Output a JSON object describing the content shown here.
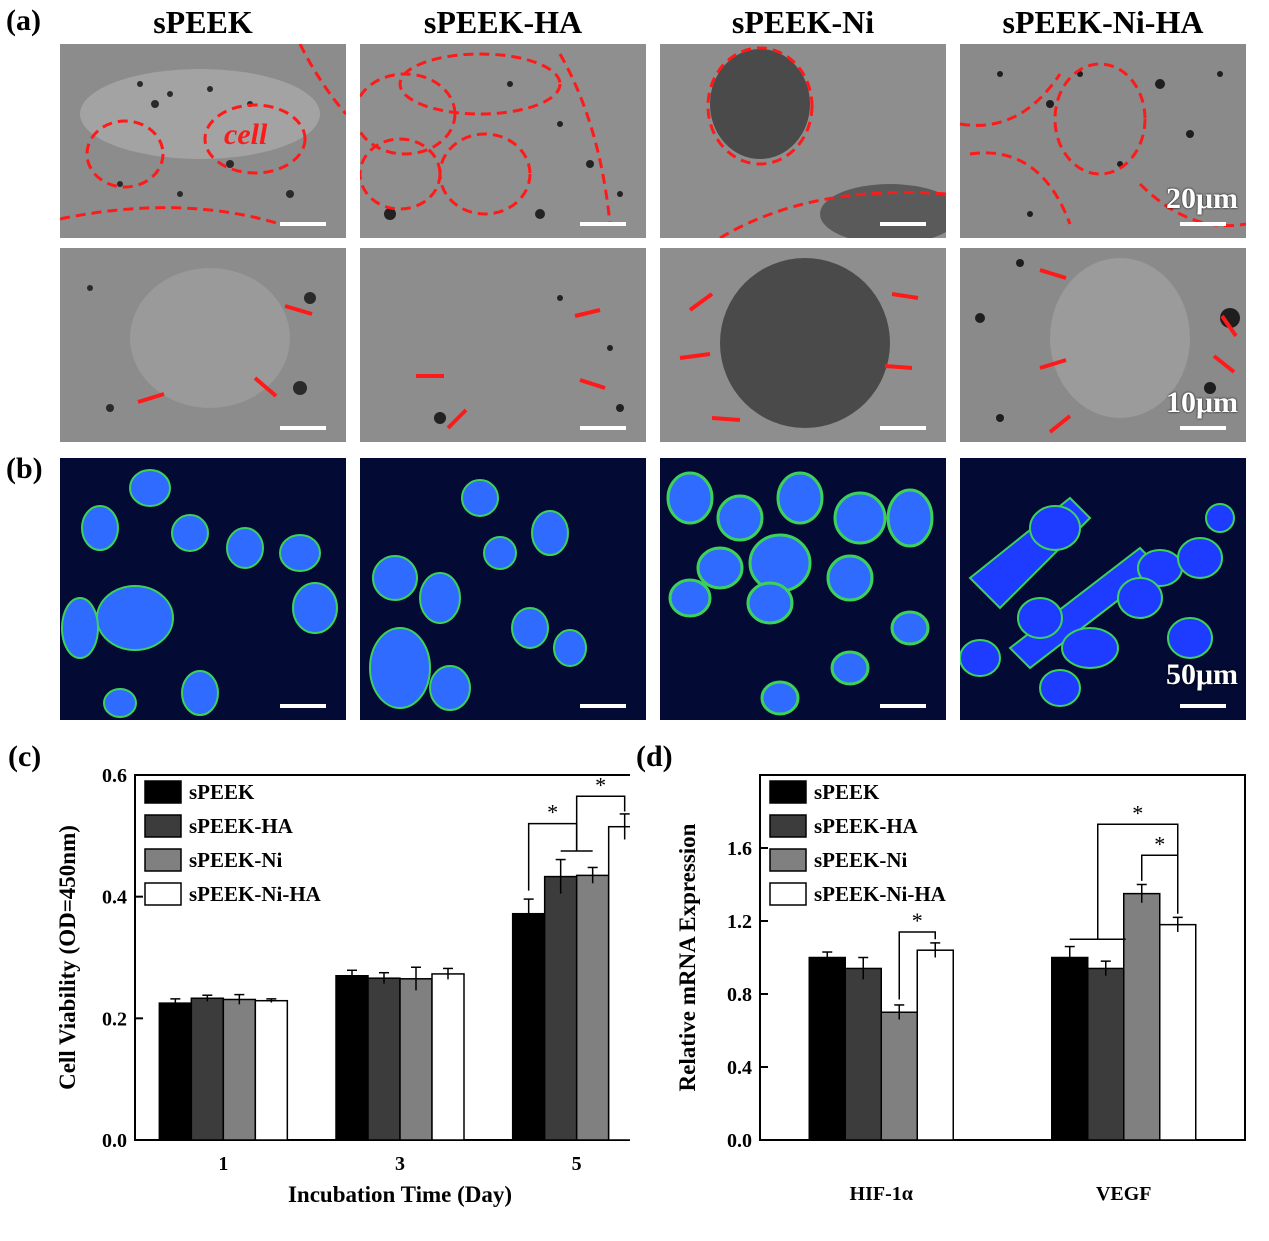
{
  "labels": {
    "a": "(a)",
    "b": "(b)",
    "c": "(c)",
    "d": "(d)"
  },
  "columns": [
    "sPEEK",
    "sPEEK-HA",
    "sPEEK-Ni",
    "sPEEK-Ni-HA"
  ],
  "cell_annotation": "cell",
  "scale_bars": {
    "row1": "20μm",
    "row2": "10μm",
    "row3": "50μm"
  },
  "colors": {
    "sem_gray": "#8a8a8a",
    "fluo_bg": "#030a33",
    "nucleus_blue": "#1e3cff",
    "actin_green": "#3cd25a",
    "outline_red": "#ff1a1a",
    "bar_sPEEK": "#000000",
    "bar_sPEEK-HA": "#3c3c3c",
    "bar_sPEEK-Ni": "#808080",
    "bar_sPEEK-Ni-HA": "#ffffff"
  },
  "chart_data": [
    {
      "type": "bar",
      "panel": "(c)",
      "categories": [
        "1",
        "3",
        "5"
      ],
      "xlabel": "Incubation Time (Day)",
      "ylabel": "Cell Viability (OD=450nm)",
      "ylim": [
        0.0,
        0.6
      ],
      "yticks": [
        "0.0",
        "0.2",
        "0.4",
        "0.6"
      ],
      "legend_position": "top-left",
      "series": [
        {
          "name": "sPEEK",
          "values": [
            0.225,
            0.27,
            0.372
          ],
          "errors": [
            0.007,
            0.009,
            0.024
          ]
        },
        {
          "name": "sPEEK-HA",
          "values": [
            0.233,
            0.266,
            0.433
          ],
          "errors": [
            0.005,
            0.009,
            0.028
          ]
        },
        {
          "name": "sPEEK-Ni",
          "values": [
            0.231,
            0.265,
            0.435
          ],
          "errors": [
            0.008,
            0.019,
            0.013
          ]
        },
        {
          "name": "sPEEK-Ni-HA",
          "values": [
            0.229,
            0.273,
            0.515
          ],
          "errors": [
            0.003,
            0.009,
            0.021
          ]
        }
      ],
      "significance": [
        "*",
        "*"
      ]
    },
    {
      "type": "bar",
      "panel": "(d)",
      "categories": [
        "HIF-1α",
        "VEGF"
      ],
      "xlabel": "",
      "ylabel": "Relative mRNA Expression",
      "ylim": [
        0.0,
        2.0
      ],
      "yticks": [
        "0.0",
        "0.4",
        "0.8",
        "1.2",
        "1.6"
      ],
      "legend_position": "top-left",
      "series": [
        {
          "name": "sPEEK",
          "values": [
            1.0,
            1.0
          ],
          "errors": [
            0.03,
            0.06
          ]
        },
        {
          "name": "sPEEK-HA",
          "values": [
            0.94,
            0.94
          ],
          "errors": [
            0.06,
            0.04
          ]
        },
        {
          "name": "sPEEK-Ni",
          "values": [
            0.7,
            1.35
          ],
          "errors": [
            0.04,
            0.05
          ]
        },
        {
          "name": "sPEEK-Ni-HA",
          "values": [
            1.04,
            1.18
          ],
          "errors": [
            0.04,
            0.04
          ]
        }
      ],
      "significance": [
        "*",
        "*",
        "*"
      ]
    }
  ]
}
